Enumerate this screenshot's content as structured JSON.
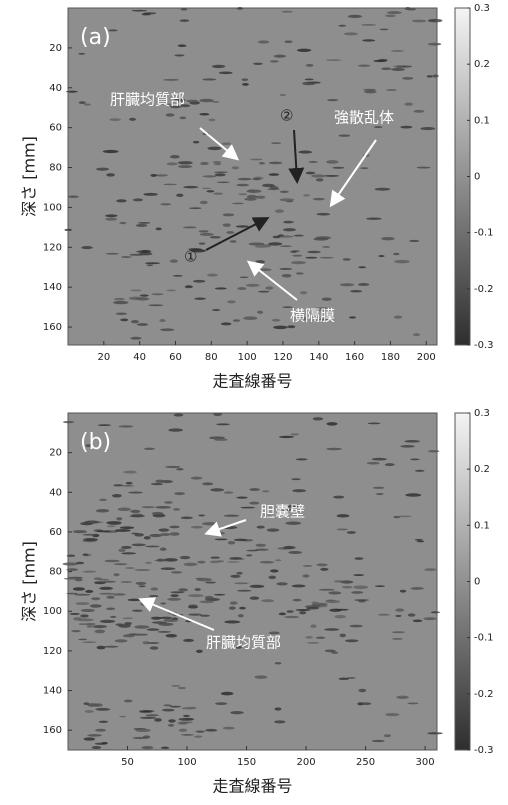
{
  "chart_data": [
    {
      "type": "heatmap",
      "panel_label": "(a)",
      "xlabel": "走査線番号",
      "ylabel": "深さ [mm]",
      "xlim": [
        0,
        206
      ],
      "xticks": [
        20,
        40,
        60,
        80,
        100,
        120,
        140,
        160,
        180,
        200
      ],
      "ylim": [
        0,
        169
      ],
      "yticks": [
        20,
        40,
        60,
        80,
        100,
        120,
        140,
        160
      ],
      "clim": [
        -0.3,
        0.3
      ],
      "cticks": [
        0.3,
        0.2,
        0.1,
        0,
        -0.1,
        -0.2,
        -0.3
      ],
      "annotations": [
        {
          "text": "肝臓均質部"
        },
        {
          "text": "②"
        },
        {
          "text": "強散乱体"
        },
        {
          "text": "①"
        },
        {
          "text": "横隔膜"
        }
      ]
    },
    {
      "type": "heatmap",
      "panel_label": "(b)",
      "xlabel": "走査線番号",
      "ylabel": "深さ [mm]",
      "xlim": [
        0,
        310
      ],
      "xticks": [
        50,
        100,
        150,
        200,
        250,
        300
      ],
      "ylim": [
        0,
        170
      ],
      "yticks": [
        20,
        40,
        60,
        80,
        100,
        120,
        140,
        160
      ],
      "clim": [
        -0.3,
        0.3
      ],
      "cticks": [
        0.3,
        0.2,
        0.1,
        0,
        -0.1,
        -0.2,
        -0.3
      ],
      "annotations": [
        {
          "text": "胆嚢壁"
        },
        {
          "text": "肝臓均質部"
        }
      ]
    }
  ]
}
